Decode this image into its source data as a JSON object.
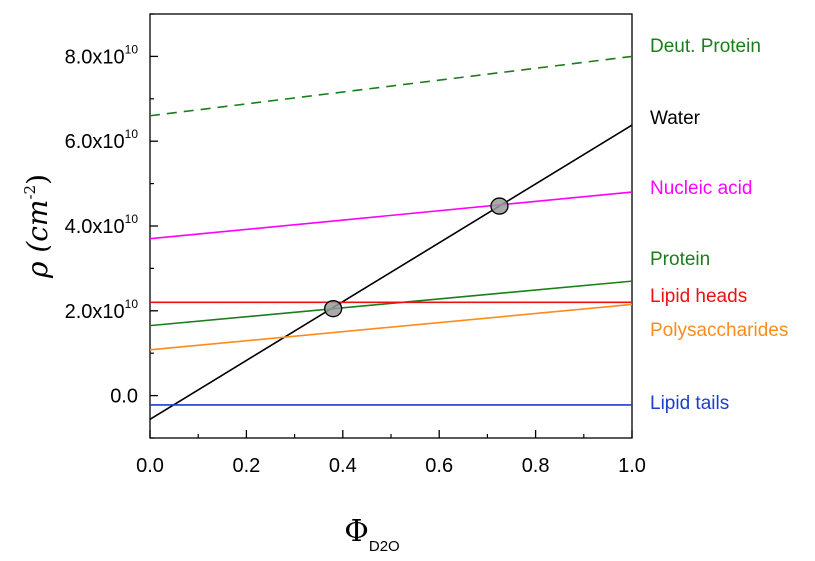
{
  "chart_data": {
    "type": "line",
    "xlabel": "Φ",
    "xlabel_sub": "D2O",
    "ylabel": "ρ (cm",
    "ylabel_sup": "-2",
    "ylabel_close": ")",
    "xlim": [
      0.0,
      1.0
    ],
    "ylim": [
      -10000000000.0,
      90000000000.0
    ],
    "xticks": [
      0.0,
      0.2,
      0.4,
      0.6,
      0.8,
      1.0
    ],
    "xtick_labels": [
      "0.0",
      "0.2",
      "0.4",
      "0.6",
      "0.8",
      "1.0"
    ],
    "yticks": [
      {
        "value": 0,
        "base": "0.0",
        "exp": ""
      },
      {
        "value": 20000000000.0,
        "base": "2.0x10",
        "exp": "10"
      },
      {
        "value": 40000000000.0,
        "base": "4.0x10",
        "exp": "10"
      },
      {
        "value": 60000000000.0,
        "base": "6.0x10",
        "exp": "10"
      },
      {
        "value": 80000000000.0,
        "base": "8.0x10",
        "exp": "10"
      }
    ],
    "series": [
      {
        "name": "Deut. Protein",
        "color": "#1a7f1a",
        "dashed": true,
        "x": [
          0,
          1
        ],
        "y": [
          66000000000.0,
          80000000000.0
        ]
      },
      {
        "name": "Water",
        "color": "#000000",
        "dashed": false,
        "x": [
          0,
          1
        ],
        "y": [
          -5600000000.0,
          63800000000.0
        ]
      },
      {
        "name": "Nucleic acid",
        "color": "#ff00ff",
        "dashed": false,
        "x": [
          0,
          1
        ],
        "y": [
          37000000000.0,
          48000000000.0
        ]
      },
      {
        "name": "Protein",
        "color": "#1a7f1a",
        "dashed": false,
        "x": [
          0,
          1
        ],
        "y": [
          16500000000.0,
          27000000000.0
        ]
      },
      {
        "name": "Lipid heads",
        "color": "#ee1111",
        "dashed": false,
        "x": [
          0,
          1
        ],
        "y": [
          22000000000.0,
          22000000000.0
        ]
      },
      {
        "name": "Polysaccharides",
        "color": "#ff8c1a",
        "dashed": false,
        "x": [
          0,
          1
        ],
        "y": [
          10800000000.0,
          21500000000.0
        ]
      },
      {
        "name": "Lipid tails",
        "color": "#1a3fcc",
        "dashed": false,
        "x": [
          0,
          1
        ],
        "y": [
          -2200000000.0,
          -2200000000.0
        ]
      }
    ],
    "points": [
      {
        "x": 0.38,
        "y": 20500000000.0
      },
      {
        "x": 0.725,
        "y": 44700000000.0
      }
    ],
    "grid": false,
    "legend": "right"
  }
}
